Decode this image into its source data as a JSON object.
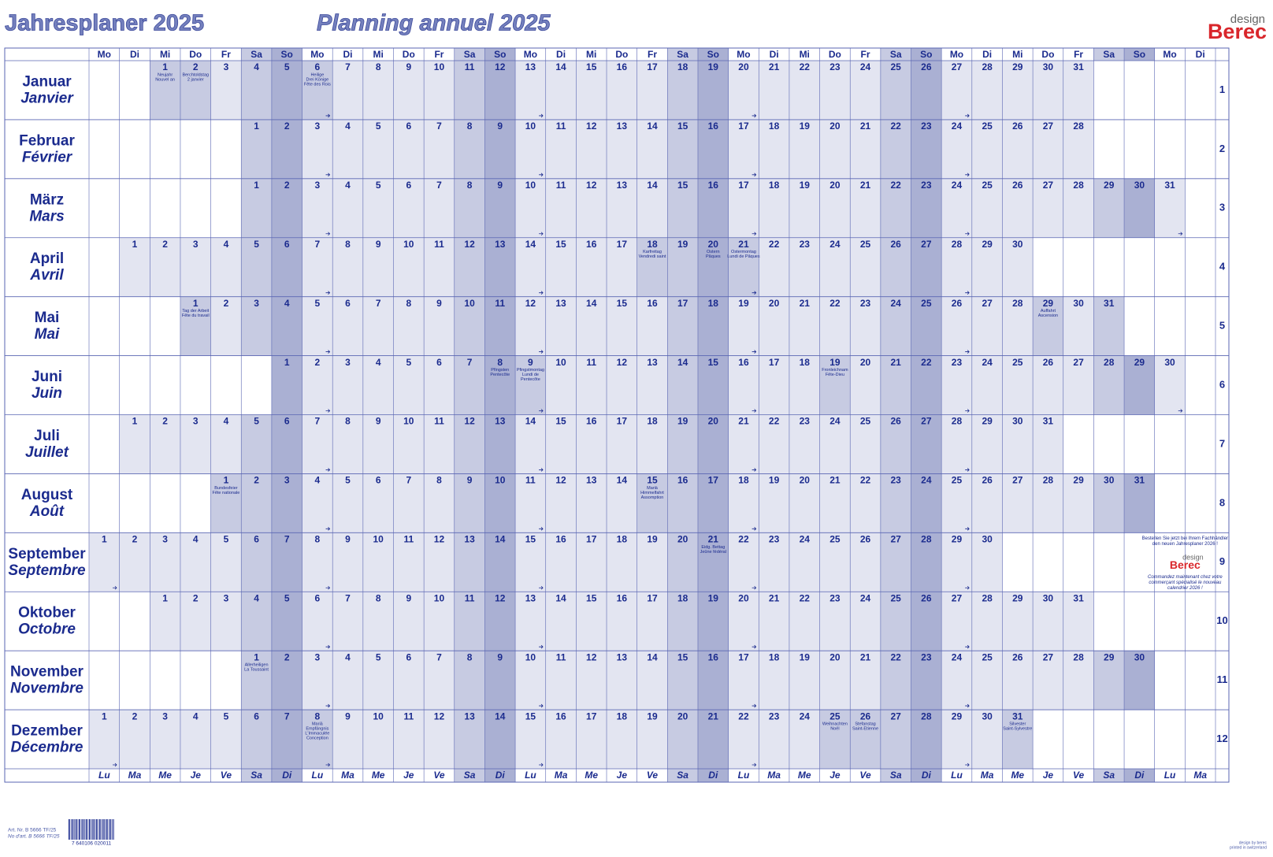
{
  "header": {
    "title_de": "Jahresplaner 2025",
    "title_fr": "Planning annuel 2025",
    "logo_small": "design",
    "logo_brand": "Berec"
  },
  "weekdays_top": [
    "Mo",
    "Di",
    "Mi",
    "Do",
    "Fr",
    "Sa",
    "So",
    "Mo",
    "Di",
    "Mi",
    "Do",
    "Fr",
    "Sa",
    "So",
    "Mo",
    "Di",
    "Mi",
    "Do",
    "Fr",
    "Sa",
    "So",
    "Mo",
    "Di",
    "Mi",
    "Do",
    "Fr",
    "Sa",
    "So",
    "Mo",
    "Di",
    "Mi",
    "Do",
    "Fr",
    "Sa",
    "So",
    "Mo",
    "Di"
  ],
  "weekdays_bottom": [
    "Lu",
    "Ma",
    "Me",
    "Je",
    "Ve",
    "Sa",
    "Di",
    "Lu",
    "Ma",
    "Me",
    "Je",
    "Ve",
    "Sa",
    "Di",
    "Lu",
    "Ma",
    "Me",
    "Je",
    "Ve",
    "Sa",
    "Di",
    "Lu",
    "Ma",
    "Me",
    "Je",
    "Ve",
    "Sa",
    "Di",
    "Lu",
    "Ma",
    "Me",
    "Je",
    "Ve",
    "Sa",
    "Di",
    "Lu",
    "Ma"
  ],
  "months": [
    {
      "de": "Januar",
      "fr": "Janvier",
      "number": 1,
      "cells": [
        null,
        null,
        1,
        2,
        3,
        4,
        5,
        6,
        7,
        8,
        9,
        10,
        11,
        12,
        13,
        14,
        15,
        16,
        17,
        18,
        19,
        20,
        21,
        22,
        23,
        24,
        25,
        26,
        27,
        28,
        29,
        30,
        31
      ],
      "notes": [
        {
          "day": 1,
          "lines": [
            "Neujahr",
            "Nouvel an"
          ]
        },
        {
          "day": 2,
          "lines": [
            "Berchtoldstag",
            "2 janvier"
          ]
        },
        {
          "day": 6,
          "lines": [
            "Heilige",
            "Drei Könige",
            "Fête des Rois"
          ]
        }
      ]
    },
    {
      "de": "Februar",
      "fr": "Février",
      "number": 2,
      "cells": [
        null,
        null,
        null,
        null,
        null,
        1,
        2,
        3,
        4,
        5,
        6,
        7,
        8,
        9,
        10,
        11,
        12,
        13,
        14,
        15,
        16,
        17,
        18,
        19,
        20,
        21,
        22,
        23,
        24,
        25,
        26,
        27,
        28
      ],
      "notes": []
    },
    {
      "de": "März",
      "fr": "Mars",
      "number": 3,
      "cells": [
        null,
        null,
        null,
        null,
        null,
        1,
        2,
        3,
        4,
        5,
        6,
        7,
        8,
        9,
        10,
        11,
        12,
        13,
        14,
        15,
        16,
        17,
        18,
        19,
        20,
        21,
        22,
        23,
        24,
        25,
        26,
        27,
        28,
        29,
        30,
        31
      ],
      "notes": []
    },
    {
      "de": "April",
      "fr": "Avril",
      "number": 4,
      "cells": [
        null,
        1,
        2,
        3,
        4,
        5,
        6,
        7,
        8,
        9,
        10,
        11,
        12,
        13,
        14,
        15,
        16,
        17,
        18,
        19,
        20,
        21,
        22,
        23,
        24,
        25,
        26,
        27,
        28,
        29,
        30
      ],
      "notes": [
        {
          "day": 18,
          "lines": [
            "Karfreitag",
            "Vendredi saint"
          ]
        },
        {
          "day": 20,
          "lines": [
            "Ostern",
            "Pâques"
          ]
        },
        {
          "day": 21,
          "lines": [
            "Ostermontag",
            "Lundi de Pâques"
          ]
        }
      ]
    },
    {
      "de": "Mai",
      "fr": "Mai",
      "number": 5,
      "cells": [
        null,
        null,
        null,
        1,
        2,
        3,
        4,
        5,
        6,
        7,
        8,
        9,
        10,
        11,
        12,
        13,
        14,
        15,
        16,
        17,
        18,
        19,
        20,
        21,
        22,
        23,
        24,
        25,
        26,
        27,
        28,
        29,
        30,
        31
      ],
      "notes": [
        {
          "day": 1,
          "lines": [
            "Tag der Arbeit",
            "Fête du travail"
          ]
        },
        {
          "day": 29,
          "lines": [
            "Auffahrt",
            "Ascension"
          ]
        }
      ]
    },
    {
      "de": "Juni",
      "fr": "Juin",
      "number": 6,
      "cells": [
        null,
        null,
        null,
        null,
        null,
        null,
        1,
        2,
        3,
        4,
        5,
        6,
        7,
        8,
        9,
        10,
        11,
        12,
        13,
        14,
        15,
        16,
        17,
        18,
        19,
        20,
        21,
        22,
        23,
        24,
        25,
        26,
        27,
        28,
        29,
        30
      ],
      "notes": [
        {
          "day": 8,
          "lines": [
            "Pfingsten",
            "Pentecôte"
          ]
        },
        {
          "day": 9,
          "lines": [
            "Pfingstmontag",
            "Lundi de",
            "Pentecôte"
          ]
        },
        {
          "day": 19,
          "lines": [
            "Fronleichnam",
            "Fête-Dieu"
          ]
        }
      ]
    },
    {
      "de": "Juli",
      "fr": "Juillet",
      "number": 7,
      "cells": [
        null,
        1,
        2,
        3,
        4,
        5,
        6,
        7,
        8,
        9,
        10,
        11,
        12,
        13,
        14,
        15,
        16,
        17,
        18,
        19,
        20,
        21,
        22,
        23,
        24,
        25,
        26,
        27,
        28,
        29,
        30,
        31
      ],
      "notes": []
    },
    {
      "de": "August",
      "fr": "Août",
      "number": 8,
      "cells": [
        null,
        null,
        null,
        null,
        1,
        2,
        3,
        4,
        5,
        6,
        7,
        8,
        9,
        10,
        11,
        12,
        13,
        14,
        15,
        16,
        17,
        18,
        19,
        20,
        21,
        22,
        23,
        24,
        25,
        26,
        27,
        28,
        29,
        30,
        31
      ],
      "notes": [
        {
          "day": 1,
          "lines": [
            "Bundesfeier",
            "Fête nationale"
          ]
        },
        {
          "day": 15,
          "lines": [
            "Mariä",
            "Himmelfahrt",
            "Assomption"
          ]
        }
      ]
    },
    {
      "de": "September",
      "fr": "Septembre",
      "number": 9,
      "cells": [
        1,
        2,
        3,
        4,
        5,
        6,
        7,
        8,
        9,
        10,
        11,
        12,
        13,
        14,
        15,
        16,
        17,
        18,
        19,
        20,
        21,
        22,
        23,
        24,
        25,
        26,
        27,
        28,
        29,
        30
      ],
      "notes": [
        {
          "day": 21,
          "lines": [
            "Eidg. Bettag",
            "Jeûne fédéral"
          ]
        }
      ]
    },
    {
      "de": "Oktober",
      "fr": "Octobre",
      "number": 10,
      "cells": [
        null,
        null,
        1,
        2,
        3,
        4,
        5,
        6,
        7,
        8,
        9,
        10,
        11,
        12,
        13,
        14,
        15,
        16,
        17,
        18,
        19,
        20,
        21,
        22,
        23,
        24,
        25,
        26,
        27,
        28,
        29,
        30,
        31
      ],
      "notes": []
    },
    {
      "de": "November",
      "fr": "Novembre",
      "number": 11,
      "cells": [
        null,
        null,
        null,
        null,
        null,
        1,
        2,
        3,
        4,
        5,
        6,
        7,
        8,
        9,
        10,
        11,
        12,
        13,
        14,
        15,
        16,
        17,
        18,
        19,
        20,
        21,
        22,
        23,
        24,
        25,
        26,
        27,
        28,
        29,
        30
      ],
      "notes": [
        {
          "day": 1,
          "lines": [
            "Allerheiligen",
            "La Toussaint"
          ]
        }
      ]
    },
    {
      "de": "Dezember",
      "fr": "Décembre",
      "number": 12,
      "cells": [
        1,
        2,
        3,
        4,
        5,
        6,
        7,
        8,
        9,
        10,
        11,
        12,
        13,
        14,
        15,
        16,
        17,
        18,
        19,
        20,
        21,
        22,
        23,
        24,
        25,
        26,
        27,
        28,
        29,
        30,
        31
      ],
      "notes": [
        {
          "day": 8,
          "lines": [
            "Mariä",
            "Empfängnis",
            "L'Immaculée",
            "Conception"
          ]
        },
        {
          "day": 25,
          "lines": [
            "Weihnachten",
            "Noël"
          ]
        },
        {
          "day": 26,
          "lines": [
            "Stefanstag",
            "Saint-Etienne"
          ]
        },
        {
          "day": 31,
          "lines": [
            "Silvester",
            "Saint-Sylvestre"
          ]
        }
      ]
    }
  ],
  "promo": {
    "lines_de": [
      "Bestellen Sie jetzt bei Ihrem Fachhändler",
      "den neuen Jahresplaner 2026 !"
    ],
    "logo_small": "design",
    "logo_brand": "Berec",
    "lines_fr": [
      "Commandez maintenant chez votre",
      "commerçant spécialisé le nouveau",
      "calendrier 2026 !"
    ]
  },
  "footer": {
    "art_de": "Art. Nr. B 5666 TF/25",
    "art_fr": "No d'art. B 5666 TF/25",
    "barcode": "7 640106 020011",
    "credit": [
      "design by berec",
      "printed in switzerland"
    ]
  }
}
